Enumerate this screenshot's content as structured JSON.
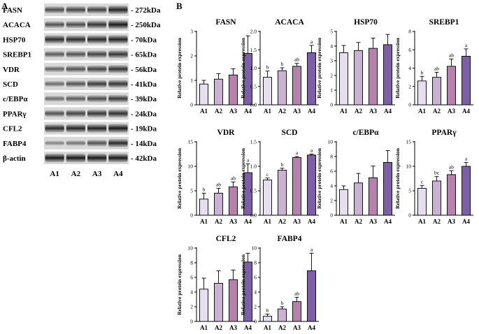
{
  "panels": {
    "a": "A",
    "b": "B"
  },
  "blot": {
    "lanes": [
      "A1",
      "A2",
      "A3",
      "A4"
    ],
    "rows": [
      {
        "protein": "FASN",
        "size": "- 272kDa",
        "intensity": [
          0.55,
          0.6,
          0.62,
          0.8
        ]
      },
      {
        "protein": "ACACA",
        "size": "- 250kDa",
        "intensity": [
          0.5,
          0.55,
          0.7,
          0.85
        ]
      },
      {
        "protein": "HSP70",
        "size": "- 70kDa",
        "intensity": [
          0.75,
          0.75,
          0.78,
          0.8
        ]
      },
      {
        "protein": "SREBP1",
        "size": "- 65kDa",
        "intensity": [
          0.45,
          0.5,
          0.62,
          0.7
        ]
      },
      {
        "protein": "VDR",
        "size": "- 56kDa",
        "intensity": [
          0.4,
          0.5,
          0.6,
          0.7
        ]
      },
      {
        "protein": "SCD",
        "size": "- 41kDa",
        "intensity": [
          0.35,
          0.5,
          0.65,
          0.68
        ]
      },
      {
        "protein": "c/EBPα",
        "size": "- 39kDa",
        "intensity": [
          0.35,
          0.45,
          0.55,
          0.65
        ]
      },
      {
        "protein": "PPARγ",
        "size": "- 24kDa",
        "intensity": [
          0.5,
          0.6,
          0.68,
          0.72
        ]
      },
      {
        "protein": "CFL2",
        "size": "- 19kDa",
        "intensity": [
          0.75,
          0.78,
          0.8,
          0.85
        ]
      },
      {
        "protein": "FABP4",
        "size": "- 14kDa",
        "intensity": [
          0.2,
          0.3,
          0.5,
          0.75
        ]
      },
      {
        "protein": "β-actin",
        "size": "- 42kDa",
        "intensity": [
          0.85,
          0.85,
          0.85,
          0.85
        ]
      }
    ]
  },
  "colors": {
    "bars": [
      "#e6dff0",
      "#c9b2d3",
      "#b582ab",
      "#7d5fa8"
    ],
    "outline": "#000000"
  },
  "chart_data": [
    {
      "type": "bar",
      "title": "FASN",
      "ylabel": "Relative protein expression",
      "categories": [
        "A1",
        "A2",
        "A3",
        "A4"
      ],
      "values": [
        0.85,
        1.05,
        1.22,
        2.1
      ],
      "errors": [
        0.15,
        0.22,
        0.25,
        0.72
      ],
      "letters": [
        "",
        "",
        "",
        ""
      ],
      "ylim": [
        0,
        3
      ],
      "yticks": [
        0,
        1,
        2,
        3
      ]
    },
    {
      "type": "bar",
      "title": "ACACA",
      "ylabel": "Relative protein expression",
      "categories": [
        "A1",
        "A2",
        "A3",
        "A4"
      ],
      "values": [
        0.75,
        0.93,
        1.05,
        1.42
      ],
      "errors": [
        0.17,
        0.08,
        0.08,
        0.2
      ],
      "letters": [
        "b",
        "b",
        "ab",
        "a"
      ],
      "ylim": [
        0,
        2
      ],
      "yticks": [
        0.0,
        0.5,
        1.0,
        1.5,
        2.0
      ]
    },
    {
      "type": "bar",
      "title": "HSP70",
      "ylabel": "Relative protein expression",
      "categories": [
        "A1",
        "A2",
        "A3",
        "A4"
      ],
      "values": [
        3.55,
        3.7,
        3.85,
        4.1
      ],
      "errors": [
        0.5,
        0.55,
        0.7,
        0.7
      ],
      "letters": [
        "",
        "",
        "",
        ""
      ],
      "ylim": [
        0,
        5
      ],
      "yticks": [
        0,
        1,
        2,
        3,
        4,
        5
      ]
    },
    {
      "type": "bar",
      "title": "SREBP1",
      "ylabel": "Relative protein expression",
      "categories": [
        "A1",
        "A2",
        "A3",
        "A4"
      ],
      "values": [
        2.6,
        3.0,
        4.2,
        5.3
      ],
      "errors": [
        0.5,
        0.55,
        0.8,
        0.8
      ],
      "letters": [
        "b",
        "ab",
        "ab",
        "a"
      ],
      "ylim": [
        0,
        8
      ],
      "yticks": [
        0,
        2,
        4,
        6,
        8
      ]
    },
    {
      "type": "bar",
      "title": "VDR",
      "ylabel": "Relative protein expression",
      "categories": [
        "A1",
        "A2",
        "A3",
        "A4"
      ],
      "values": [
        3.3,
        4.5,
        5.8,
        8.7
      ],
      "errors": [
        1.2,
        1.0,
        1.0,
        1.8
      ],
      "letters": [
        "b",
        "ab",
        "ab",
        "a"
      ],
      "ylim": [
        0,
        15
      ],
      "yticks": [
        0,
        5,
        10,
        15
      ]
    },
    {
      "type": "bar",
      "title": "SCD",
      "ylabel": "Relative protein expression",
      "categories": [
        "A1",
        "A2",
        "A3",
        "A4"
      ],
      "values": [
        0.72,
        0.92,
        1.18,
        1.23
      ],
      "errors": [
        0.04,
        0.04,
        0.02,
        0.02
      ],
      "letters": [
        "c",
        "b",
        "a",
        "a"
      ],
      "ylim": [
        0,
        1.5
      ],
      "yticks": [
        0.0,
        0.5,
        1.0,
        1.5
      ]
    },
    {
      "type": "bar",
      "title": "c/EBPα",
      "ylabel": "Relative protein expression",
      "categories": [
        "A1",
        "A2",
        "A3",
        "A4"
      ],
      "values": [
        3.5,
        4.4,
        5.1,
        7.2
      ],
      "errors": [
        0.5,
        1.3,
        1.6,
        1.6
      ],
      "letters": [
        "",
        "",
        "",
        ""
      ],
      "ylim": [
        0,
        10
      ],
      "yticks": [
        0,
        2,
        4,
        6,
        8,
        10
      ]
    },
    {
      "type": "bar",
      "title": "PPARγ",
      "ylabel": "Relative protein expression",
      "categories": [
        "A1",
        "A2",
        "A3",
        "A4"
      ],
      "values": [
        5.5,
        7.0,
        8.3,
        10.0
      ],
      "errors": [
        0.6,
        0.9,
        0.8,
        0.8
      ],
      "letters": [
        "c",
        "bc",
        "ab",
        "a"
      ],
      "ylim": [
        0,
        15
      ],
      "yticks": [
        0,
        5,
        10,
        15
      ]
    },
    {
      "type": "bar",
      "title": "CFL2",
      "ylabel": "Relative protein expression",
      "categories": [
        "A1",
        "A2",
        "A3",
        "A4"
      ],
      "values": [
        4.4,
        5.2,
        5.7,
        8.1
      ],
      "errors": [
        1.5,
        1.7,
        1.3,
        1.2
      ],
      "letters": [
        "",
        "",
        "",
        ""
      ],
      "ylim": [
        0,
        10
      ],
      "yticks": [
        0,
        2,
        4,
        6,
        8,
        10
      ]
    },
    {
      "type": "bar",
      "title": "FABP4",
      "ylabel": "Relative protein expression",
      "categories": [
        "A1",
        "A2",
        "A3",
        "A4"
      ],
      "values": [
        0.7,
        1.7,
        2.7,
        6.9
      ],
      "errors": [
        0.3,
        0.3,
        0.6,
        2.4
      ],
      "letters": [
        "b",
        "b",
        "ab",
        "a"
      ],
      "ylim": [
        0,
        10
      ],
      "yticks": [
        0,
        2,
        4,
        6,
        8,
        10
      ]
    }
  ]
}
